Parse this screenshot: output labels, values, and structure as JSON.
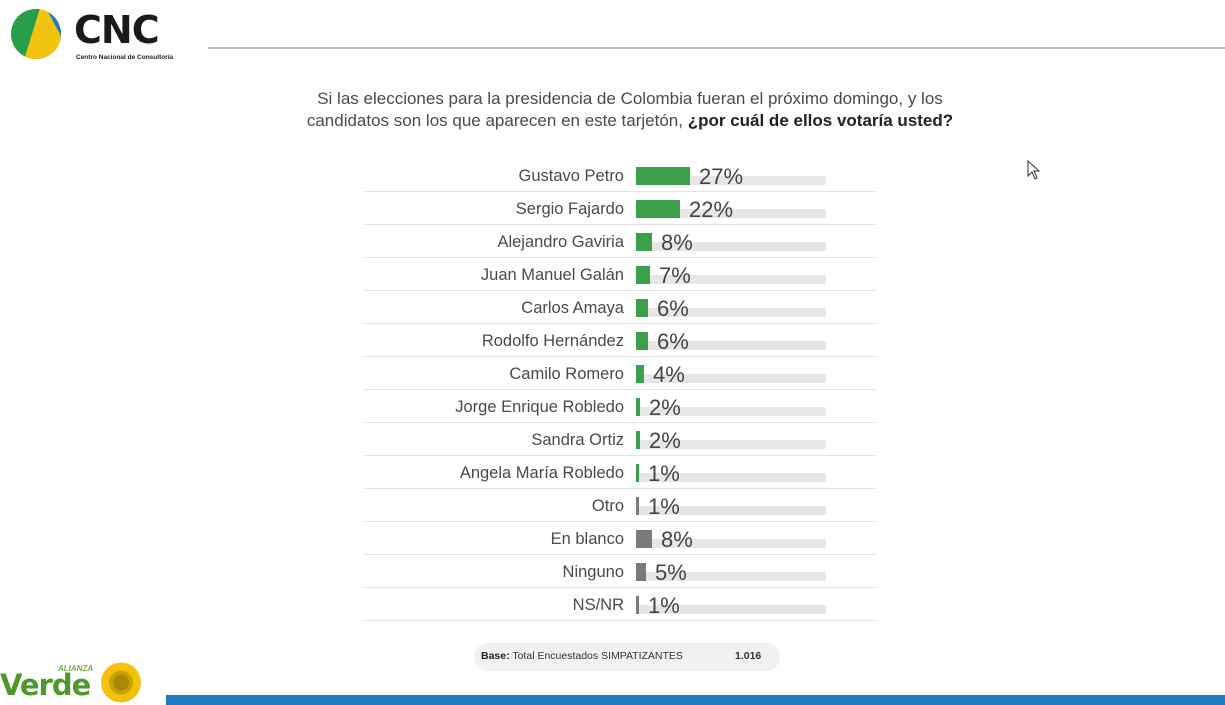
{
  "header": {
    "logo_text": "CNC",
    "logo_subtitle": "Centro Nacional de Consultoría"
  },
  "question": {
    "line1": "Si las elecciones para la presidencia de Colombia fueran el  próximo domingo, y los",
    "line2_plain": "candidatos son los que aparecen en  este tarjetón, ",
    "line2_bold": "¿por cuál de ellos votaría usted?"
  },
  "colors": {
    "candidate_bar": "#3aa04a",
    "other_bar": "#7a7a7a",
    "track": "#e6e6e6",
    "footer_bar": "#1f7bbd"
  },
  "chart_data": {
    "type": "bar",
    "orientation": "horizontal",
    "categories": [
      "Gustavo Petro",
      "Sergio Fajardo",
      "Alejandro Gaviria",
      "Juan Manuel Galán",
      "Carlos Amaya",
      "Rodolfo Hernández",
      "Camilo Romero",
      "Jorge Enrique Robledo",
      "Sandra Ortiz",
      "Angela María Robledo",
      "Otro",
      "En blanco",
      "Ninguno",
      "NS/NR"
    ],
    "values": [
      27,
      22,
      8,
      7,
      6,
      6,
      4,
      2,
      2,
      1,
      1,
      8,
      5,
      1
    ],
    "value_labels": [
      "27%",
      "22%",
      "8%",
      "7%",
      "6%",
      "6%",
      "4%",
      "2%",
      "2%",
      "1%",
      "1%",
      "8%",
      "5%",
      "1%"
    ],
    "bar_group": [
      "candidate",
      "candidate",
      "candidate",
      "candidate",
      "candidate",
      "candidate",
      "candidate",
      "candidate",
      "candidate",
      "candidate",
      "other",
      "other",
      "other",
      "other"
    ],
    "unit": "%",
    "xlim": [
      0,
      100
    ]
  },
  "base": {
    "label": "Base:",
    "text": "Total Encuestados SIMPATIZANTES",
    "value": "1.016"
  },
  "footer": {
    "logo_small": "ALIANZA",
    "logo_big": "Verde"
  }
}
